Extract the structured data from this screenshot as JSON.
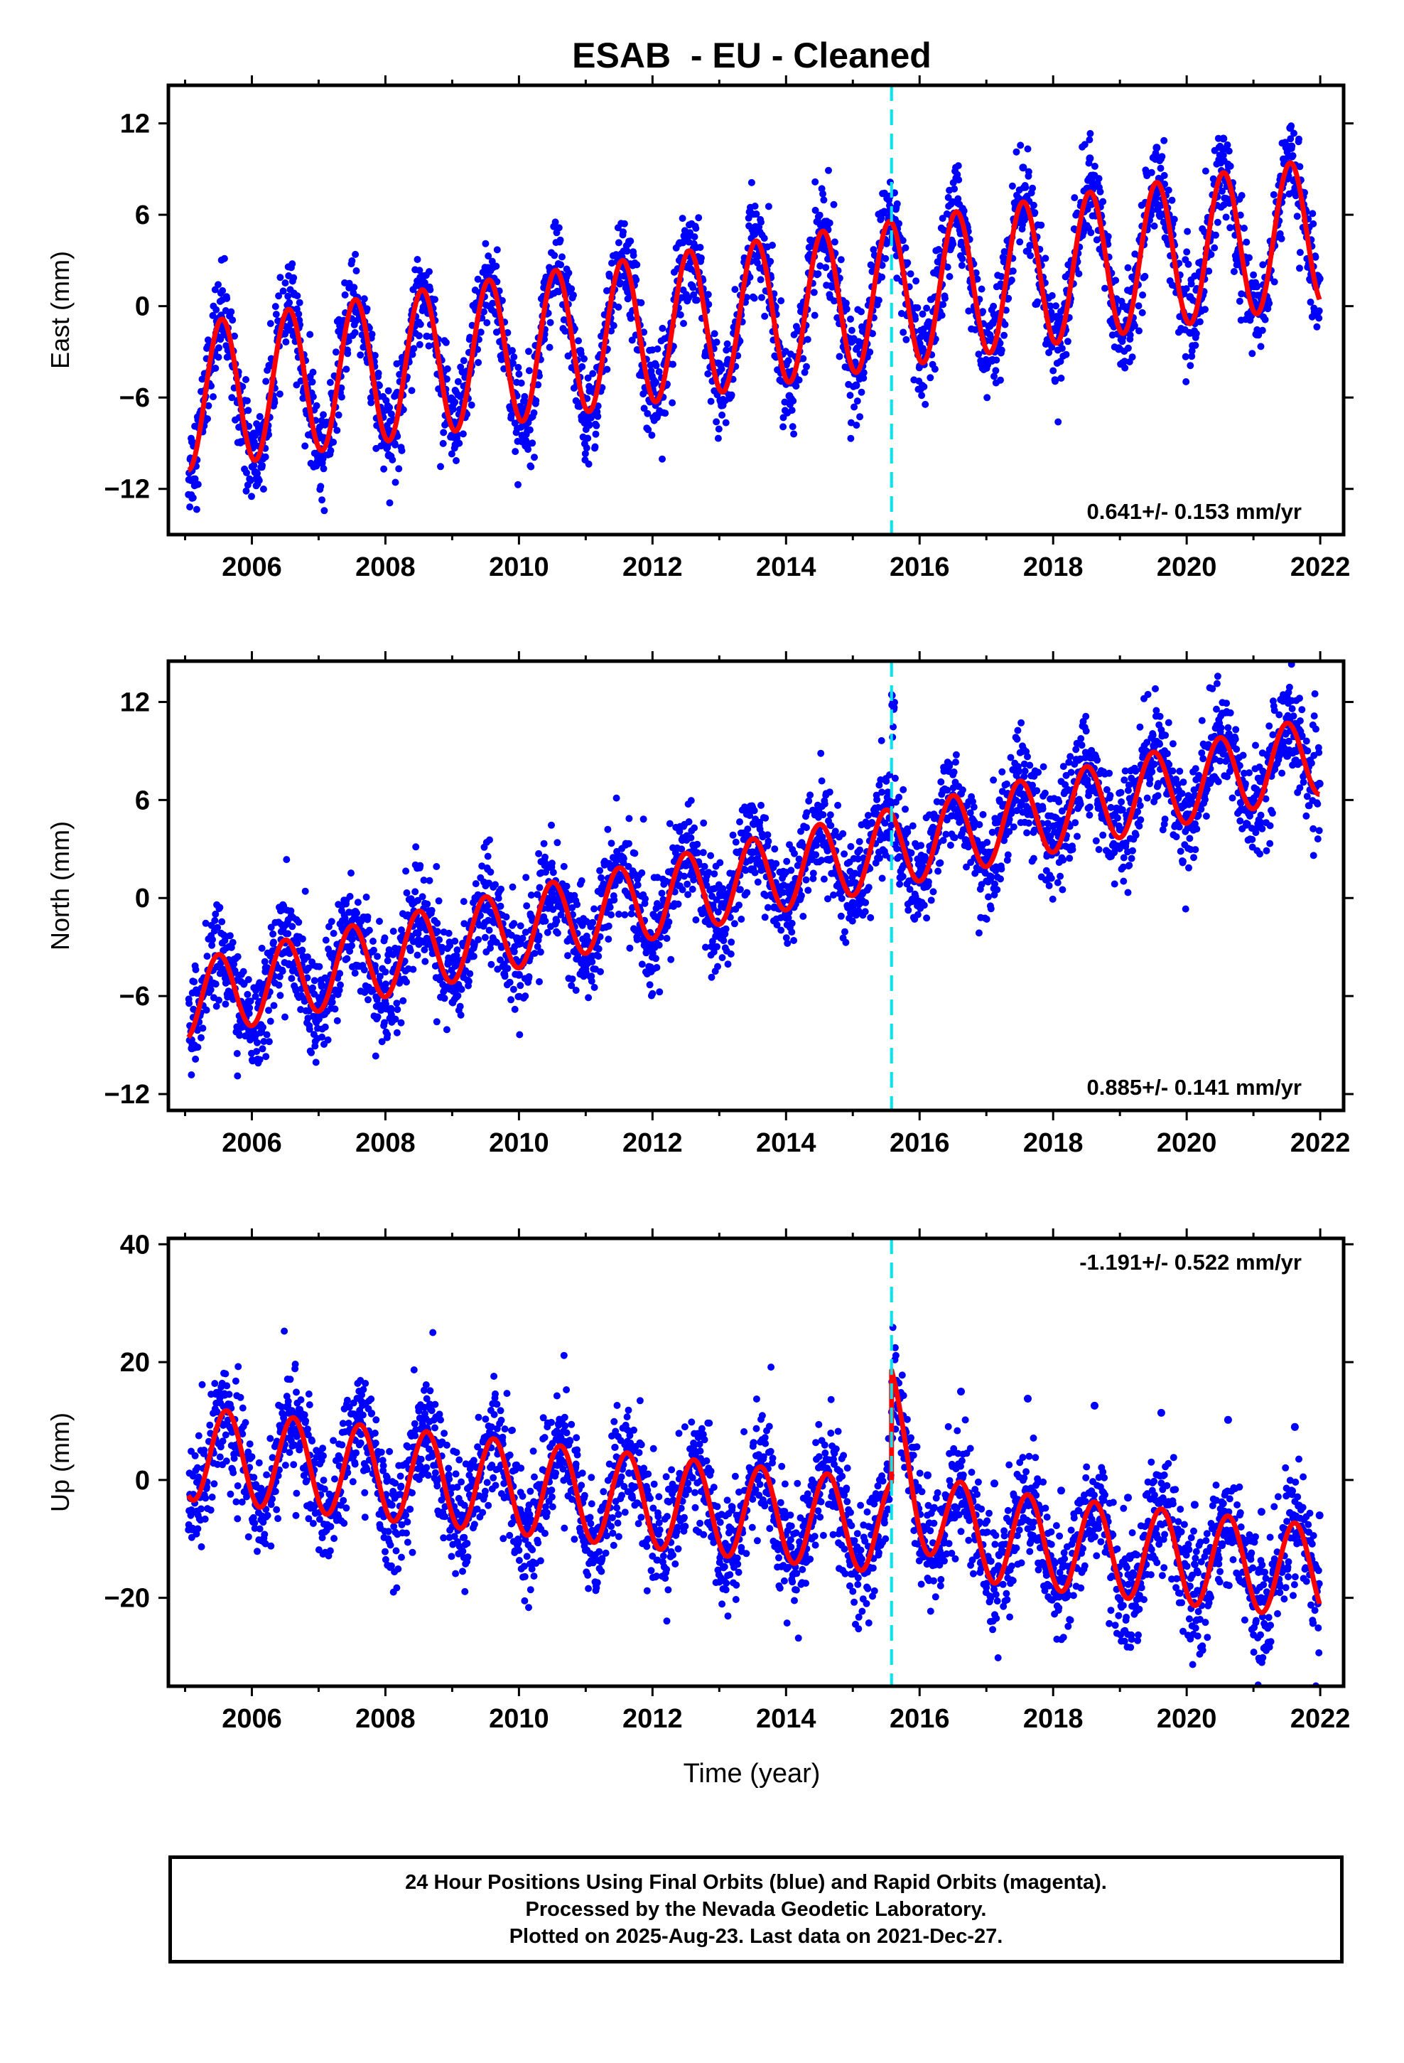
{
  "figure_title": "ESAB  - EU - Cleaned",
  "x_axis_label": "Time (year)",
  "footer": {
    "line1": "24 Hour Positions Using Final Orbits (blue) and Rapid Orbits (magenta).",
    "line2": "Processed by the Nevada Geodetic Laboratory.",
    "line3": "Plotted on 2025-Aug-23. Last data on 2021-Dec-27."
  },
  "colors": {
    "final_orbits": "#0000ff",
    "model_fit": "#ff0000",
    "equipment_change": "#00e5ee",
    "frame": "#000000"
  },
  "chart_data": [
    {
      "type": "scatter",
      "name": "east",
      "xlabel": "",
      "ylabel": "East (mm)",
      "xlim": [
        2004.75,
        2022.35
      ],
      "ylim": [
        -15,
        14.5
      ],
      "x_ticks": [
        2006,
        2008,
        2010,
        2012,
        2014,
        2016,
        2018,
        2020,
        2022
      ],
      "y_ticks": [
        -12,
        -6,
        0,
        6,
        12
      ],
      "rate_label": "0.641+/- 0.153 mm/yr",
      "rate_label_position": "bottom-right",
      "offset_epoch": 2015.58,
      "data_span": [
        2005.05,
        2021.99
      ],
      "model": {
        "intercept_2005": -6.0,
        "trend_mm_per_yr": 0.641,
        "annual_amplitude": 4.8,
        "annual_peak_phase": 0.55,
        "step_at_offset": 0.0
      },
      "series": [
        {
          "name": "",
          "kind": "daily-positions",
          "x": [
            2005.1,
            2005.55,
            2006.05,
            2006.55,
            2007.05,
            2007.55,
            2008.05,
            2008.55,
            2009.05,
            2009.55,
            2010.05,
            2010.55,
            2011.05,
            2011.55,
            2012.05,
            2012.55,
            2013.05,
            2013.55,
            2014.05,
            2014.55,
            2015.05,
            2015.55,
            2016.05,
            2016.55,
            2017.05,
            2017.55,
            2018.05,
            2018.55,
            2019.05,
            2019.55,
            2020.05,
            2020.55,
            2021.05,
            2021.55,
            2021.99
          ],
          "y": [
            -10.8,
            -1.2,
            -10.9,
            -0.5,
            -10.3,
            0.1,
            -9.8,
            0.7,
            -9.1,
            1.4,
            -8.5,
            2.0,
            -7.8,
            2.6,
            -7.2,
            3.3,
            -6.5,
            3.9,
            -5.9,
            4.5,
            -5.2,
            7.2,
            -1.9,
            8.4,
            -1.3,
            9.1,
            -0.7,
            9.7,
            0.0,
            10.4,
            0.6,
            11.0,
            1.3,
            11.7,
            1.8
          ]
        }
      ]
    },
    {
      "type": "scatter",
      "name": "north",
      "xlabel": "",
      "ylabel": "North (mm)",
      "xlim": [
        2004.75,
        2022.35
      ],
      "ylim": [
        -13,
        14.5
      ],
      "x_ticks": [
        2006,
        2008,
        2010,
        2012,
        2014,
        2016,
        2018,
        2020,
        2022
      ],
      "y_ticks": [
        -12,
        -6,
        0,
        6,
        12
      ],
      "rate_label": "0.885+/- 0.141 mm/yr",
      "rate_label_position": "bottom-right",
      "offset_epoch": 2015.58,
      "data_span": [
        2005.05,
        2021.99
      ],
      "model": {
        "intercept_2005": -6.3,
        "trend_mm_per_yr": 0.885,
        "annual_amplitude": 2.4,
        "annual_peak_phase": 0.5,
        "step_at_offset": 0.0
      },
      "series": [
        {
          "name": "",
          "kind": "daily-positions",
          "x": [
            2005.1,
            2005.5,
            2006.0,
            2006.5,
            2007.0,
            2007.5,
            2008.0,
            2008.5,
            2009.0,
            2009.5,
            2010.0,
            2010.5,
            2011.0,
            2011.5,
            2012.0,
            2012.5,
            2013.0,
            2013.5,
            2014.0,
            2014.5,
            2015.0,
            2015.55,
            2016.0,
            2016.5,
            2017.0,
            2017.5,
            2018.0,
            2018.5,
            2019.0,
            2019.5,
            2020.0,
            2020.5,
            2021.0,
            2021.5,
            2021.99
          ],
          "y": [
            -9.2,
            -4.2,
            -8.3,
            -3.3,
            -7.4,
            -2.5,
            -6.5,
            -1.6,
            -5.6,
            -0.7,
            -4.7,
            0.2,
            -3.8,
            1.1,
            -3.0,
            2.0,
            -2.1,
            2.8,
            -1.2,
            3.7,
            -0.3,
            4.9,
            1.5,
            6.3,
            2.4,
            7.2,
            3.3,
            8.1,
            4.2,
            9.0,
            5.1,
            9.8,
            6.0,
            10.7,
            7.0
          ]
        }
      ]
    },
    {
      "type": "scatter",
      "name": "up",
      "xlabel": "Time (year)",
      "ylabel": "Up (mm)",
      "xlim": [
        2004.75,
        2022.35
      ],
      "ylim": [
        -35,
        41
      ],
      "x_ticks": [
        2006,
        2008,
        2010,
        2012,
        2014,
        2016,
        2018,
        2020,
        2022
      ],
      "y_ticks": [
        -20,
        0,
        20,
        40
      ],
      "rate_label": "-1.191+/- 0.522 mm/yr",
      "rate_label_position": "top-right",
      "offset_epoch": 2015.58,
      "data_span": [
        2005.05,
        2021.99
      ],
      "model": {
        "intercept_2005": 4.6,
        "trend_mm_per_yr": -1.191,
        "annual_amplitude": 7.9,
        "annual_peak_phase": 0.62,
        "step_at_offset": 19.0
      },
      "series": [
        {
          "name": "",
          "kind": "daily-positions",
          "x": [
            2005.1,
            2005.62,
            2006.12,
            2006.62,
            2007.12,
            2007.62,
            2008.12,
            2008.62,
            2009.12,
            2009.62,
            2010.12,
            2010.62,
            2011.12,
            2011.62,
            2012.12,
            2012.62,
            2013.12,
            2013.62,
            2014.12,
            2014.62,
            2015.12,
            2015.62,
            2016.12,
            2016.62,
            2017.12,
            2017.62,
            2018.12,
            2018.62,
            2019.12,
            2019.62,
            2020.12,
            2020.62,
            2021.12,
            2021.62,
            2021.99
          ],
          "y": [
            -2.8,
            12.4,
            -3.6,
            11.2,
            -4.8,
            10.0,
            -6.0,
            8.8,
            -7.2,
            7.6,
            -8.4,
            6.4,
            -9.6,
            5.2,
            -10.8,
            4.0,
            -12.0,
            2.8,
            -13.2,
            1.6,
            -14.4,
            16.0,
            0.8,
            15.0,
            -0.6,
            13.8,
            -1.8,
            12.6,
            -3.0,
            11.4,
            -4.2,
            10.2,
            -5.4,
            9.0,
            -6.0
          ]
        }
      ]
    }
  ]
}
